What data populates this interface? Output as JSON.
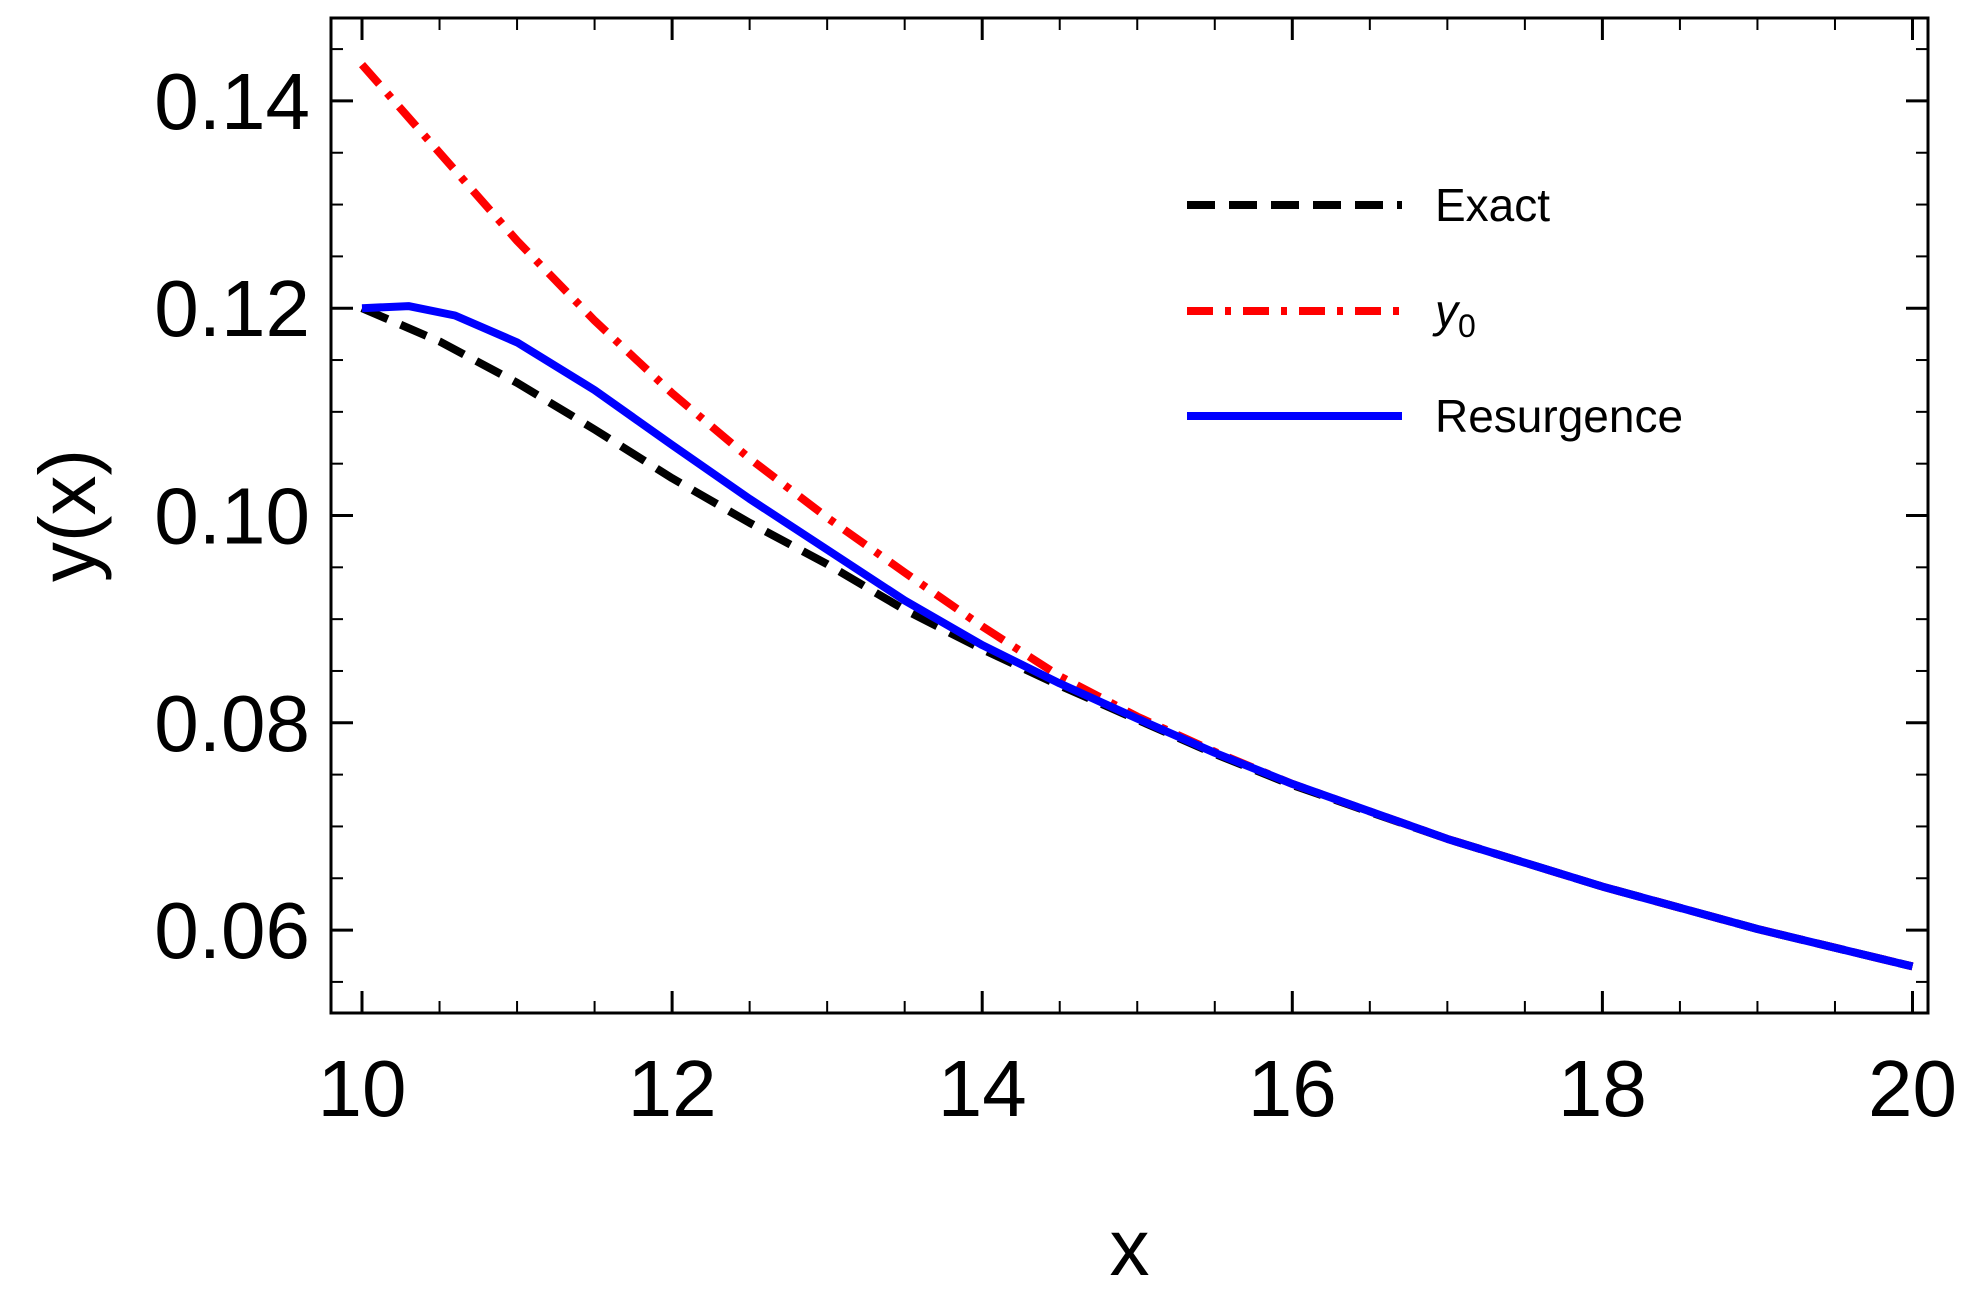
{
  "chart_data": {
    "type": "line",
    "xlabel": "x",
    "ylabel": "y(x)",
    "xlim": [
      9.8,
      20.1
    ],
    "ylim": [
      0.052,
      0.148
    ],
    "grid": false,
    "legend_position": "top-right",
    "x_ticks": [
      {
        "value": 10,
        "label": "10"
      },
      {
        "value": 12,
        "label": "12"
      },
      {
        "value": 14,
        "label": "14"
      },
      {
        "value": 16,
        "label": "16"
      },
      {
        "value": 18,
        "label": "18"
      },
      {
        "value": 20,
        "label": "20"
      }
    ],
    "y_ticks": [
      {
        "value": 0.06,
        "label": "0.06"
      },
      {
        "value": 0.08,
        "label": "0.08"
      },
      {
        "value": 0.1,
        "label": "0.10"
      },
      {
        "value": 0.12,
        "label": "0.12"
      },
      {
        "value": 0.14,
        "label": "0.14"
      }
    ],
    "series": [
      {
        "name": "Exact",
        "name_sub": "",
        "color": "#000000",
        "style": "dashed",
        "x": [
          10,
          10.5,
          11,
          11.5,
          12,
          12.5,
          13,
          13.5,
          14,
          14.5,
          15,
          15.5,
          16,
          17,
          18,
          19,
          20
        ],
        "y": [
          0.12,
          0.1168,
          0.1128,
          0.1083,
          0.1036,
          0.0993,
          0.0953,
          0.0909,
          0.0871,
          0.0836,
          0.0803,
          0.077,
          0.074,
          0.0688,
          0.0642,
          0.0601,
          0.0565
        ]
      },
      {
        "name": "y",
        "name_sub": "0",
        "color": "#ff0000",
        "style": "dashdot",
        "x": [
          10,
          10.5,
          11,
          11.5,
          12,
          12.5,
          13,
          13.5,
          14,
          14.5,
          15,
          15.5,
          16,
          17,
          18,
          19,
          20
        ],
        "y": [
          0.1435,
          0.135,
          0.1265,
          0.1188,
          0.1118,
          0.1055,
          0.0998,
          0.0945,
          0.0893,
          0.0845,
          0.0806,
          0.0772,
          0.0741,
          0.0688,
          0.0642,
          0.0601,
          0.0565
        ]
      },
      {
        "name": "Resurgence",
        "name_sub": "",
        "color": "#0000ff",
        "style": "solid",
        "x": [
          10,
          10.3,
          10.6,
          11,
          11.5,
          12,
          12.5,
          13,
          13.5,
          14,
          14.5,
          15,
          15.5,
          16,
          17,
          18,
          19,
          20
        ],
        "y": [
          0.12,
          0.1202,
          0.1193,
          0.1167,
          0.1121,
          0.1068,
          0.1016,
          0.0967,
          0.0918,
          0.0875,
          0.0838,
          0.0804,
          0.0771,
          0.0741,
          0.0688,
          0.0642,
          0.0601,
          0.0565
        ]
      }
    ]
  }
}
